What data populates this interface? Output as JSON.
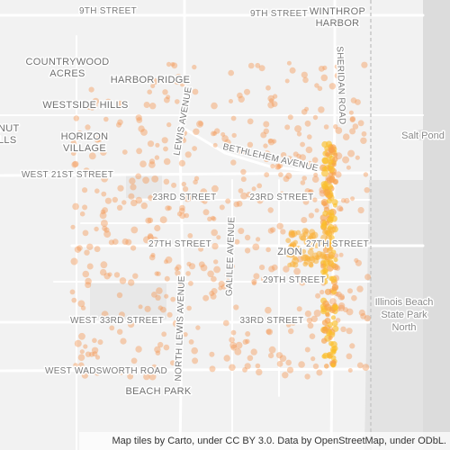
{
  "map": {
    "labels": {
      "street_9th_west": "9TH STREET",
      "street_9th_east": "9TH STREET",
      "winthrop_harbor": [
        "WINTHROP",
        "HARBOR"
      ],
      "countrywood_acres": [
        "COUNTRYWOOD",
        "ACRES"
      ],
      "harbor_ridge": "HARBOR RIDGE",
      "westside_hills": "WESTSIDE HILLS",
      "chestnut_hills": [
        "NUT",
        "LLS"
      ],
      "horizon_village": [
        "HORIZON",
        "VILLAGE"
      ],
      "west_21st_street": "WEST 21ST STREET",
      "lewis_avenue": "LEWIS AVENUE",
      "bethlehem_avenue": "BETHLEHEM AVENUE",
      "sheridan_road": "SHERIDAN ROAD",
      "salt_pond": "Salt Pond",
      "street_23rd_west": "23RD STREET",
      "street_23rd_east": "23RD STREET",
      "street_27th_west": "27TH STREET",
      "street_27th_east": "27TH STREET",
      "zion": "ZION",
      "galilee_avenue": "GALILEE AVENUE",
      "street_29th": "29TH STREET",
      "west_33rd_street": "WEST 33RD STREET",
      "street_33rd": "33RD STREET",
      "north_lewis_avenue": "NORTH LEWIS AVENUE",
      "west_wadsworth_road": "WEST WADSWORTH ROAD",
      "beach_park": "BEACH PARK",
      "illinois_beach": [
        "Illinois Beach",
        "State Park",
        "North"
      ]
    },
    "attribution": "Map tiles by Carto, under CC BY 3.0. Data by OpenStreetMap, under ODbL."
  }
}
